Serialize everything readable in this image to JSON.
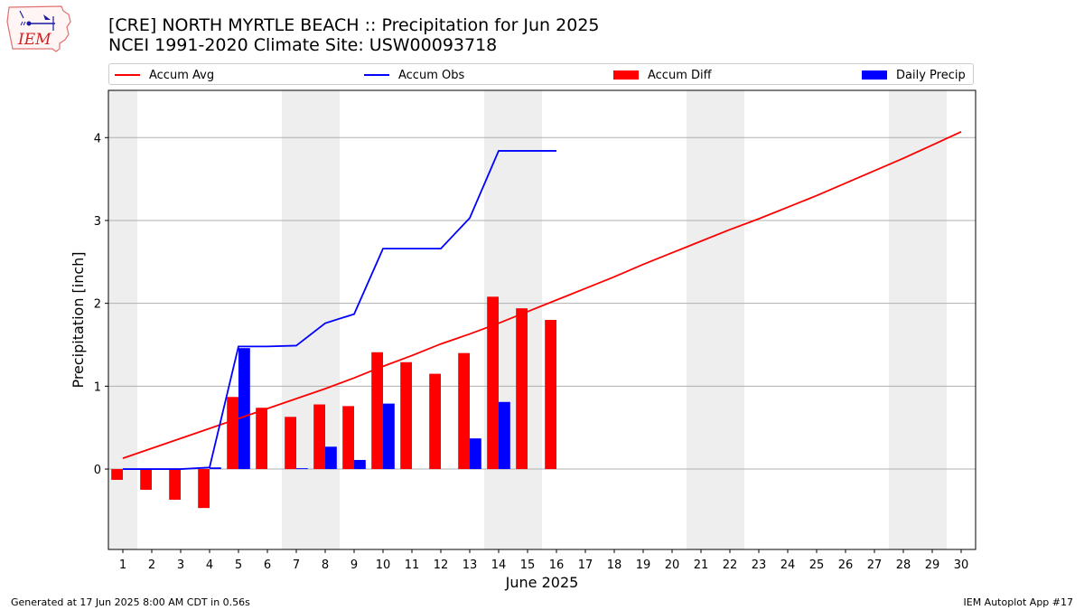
{
  "header": {
    "title_line1": "[CRE] NORTH MYRTLE BEACH :: Precipitation for Jun 2025",
    "title_line2": "NCEI 1991-2020 Climate Site: USW00093718"
  },
  "logo": {
    "text": "IEM"
  },
  "footer": {
    "generated": "Generated at 17 Jun 2025 8:00 AM CDT in 0.56s",
    "app": "IEM Autoplot App #17"
  },
  "colors": {
    "avg": "#ff0000",
    "obs": "#0000ff",
    "diff": "#ff0000",
    "daily": "#0000ff",
    "weekend_shade": "#eeeeee",
    "grid": "#b0b0b0"
  },
  "chart_data": {
    "type": "bar",
    "xlabel": "June 2025",
    "ylabel": "Precipitation [inch]",
    "xlim": [
      0.5,
      30.5
    ],
    "ylim": [
      -0.97,
      4.57
    ],
    "yticks": [
      0,
      1,
      2,
      3,
      4
    ],
    "grid": "y",
    "legend_position": "top",
    "days": [
      1,
      2,
      3,
      4,
      5,
      6,
      7,
      8,
      9,
      10,
      11,
      12,
      13,
      14,
      15,
      16,
      17,
      18,
      19,
      20,
      21,
      22,
      23,
      24,
      25,
      26,
      27,
      28,
      29,
      30
    ],
    "weekend_spans": [
      [
        0.5,
        1.5
      ],
      [
        6.5,
        8.5
      ],
      [
        13.5,
        15.5
      ],
      [
        20.5,
        22.5
      ],
      [
        27.5,
        29.5
      ]
    ],
    "series": [
      {
        "name": "Accum Avg",
        "kind": "line",
        "x": [
          1,
          2,
          3,
          4,
          5,
          6,
          7,
          8,
          9,
          10,
          11,
          12,
          13,
          14,
          15,
          16,
          17,
          18,
          19,
          20,
          21,
          22,
          23,
          24,
          25,
          26,
          27,
          28,
          29,
          30
        ],
        "values": [
          0.13,
          0.25,
          0.37,
          0.49,
          0.61,
          0.73,
          0.85,
          0.97,
          1.1,
          1.24,
          1.37,
          1.51,
          1.63,
          1.76,
          1.9,
          2.04,
          2.18,
          2.32,
          2.47,
          2.61,
          2.75,
          2.89,
          3.02,
          3.16,
          3.3,
          3.45,
          3.6,
          3.75,
          3.91,
          4.07
        ]
      },
      {
        "name": "Accum Obs",
        "kind": "line",
        "x": [
          1,
          2,
          3,
          4,
          5,
          6,
          7,
          8,
          9,
          10,
          11,
          12,
          13,
          14,
          15,
          16
        ],
        "values": [
          0.0,
          0.0,
          0.0,
          0.02,
          1.48,
          1.48,
          1.49,
          1.76,
          1.87,
          2.66,
          2.66,
          2.66,
          3.03,
          3.84,
          3.84,
          3.84
        ]
      },
      {
        "name": "Accum Diff",
        "kind": "bar",
        "x": [
          1,
          2,
          3,
          4,
          5,
          6,
          7,
          8,
          9,
          10,
          11,
          12,
          13,
          14,
          15,
          16
        ],
        "values": [
          -0.13,
          -0.25,
          -0.37,
          -0.47,
          0.87,
          0.74,
          0.63,
          0.78,
          0.76,
          1.41,
          1.29,
          1.15,
          1.4,
          2.08,
          1.94,
          1.8
        ]
      },
      {
        "name": "Daily Precip",
        "kind": "bar",
        "x": [
          1,
          2,
          3,
          4,
          5,
          6,
          7,
          8,
          9,
          10,
          11,
          12,
          13,
          14,
          15,
          16
        ],
        "values": [
          0.0,
          0.0,
          0.0,
          0.02,
          1.46,
          0.0,
          0.01,
          0.27,
          0.11,
          0.79,
          0.0,
          0.0,
          0.37,
          0.81,
          0.0,
          0.0
        ]
      }
    ]
  }
}
